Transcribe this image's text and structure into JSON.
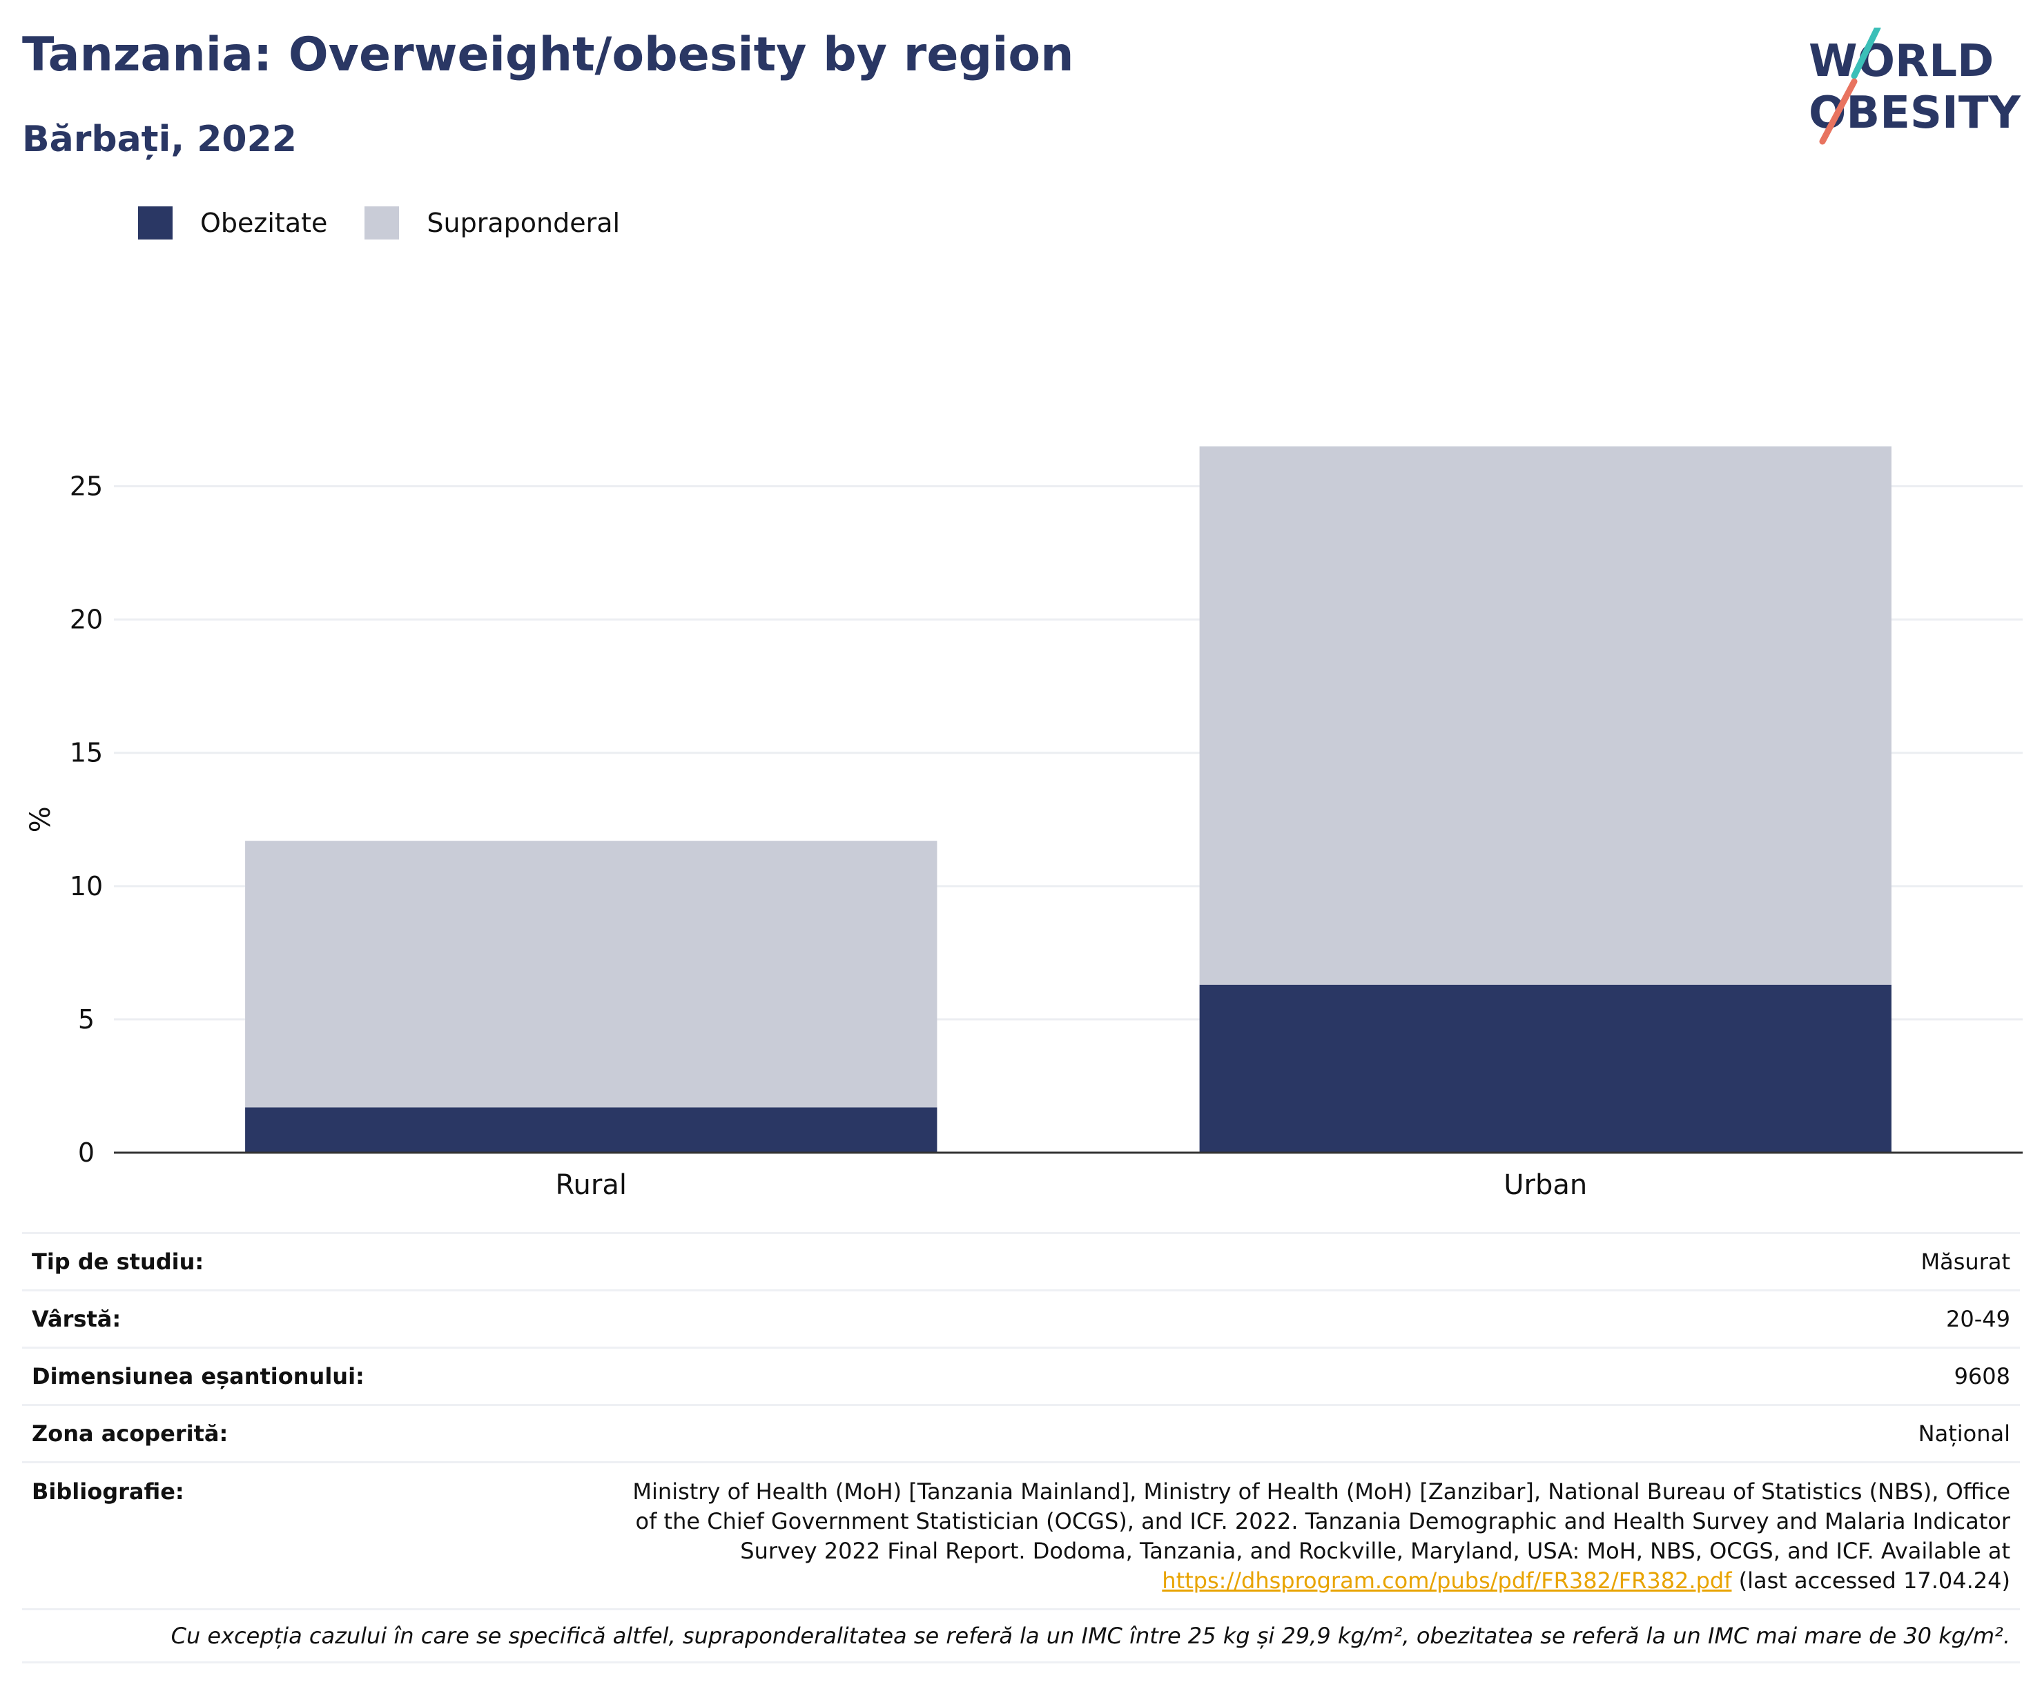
{
  "title": "Tanzania: Overweight/obesity by region",
  "subtitle": "Bărbați, 2022",
  "logo": {
    "line1": "WORLD",
    "line2": "OBESITY",
    "accent_teal": "#3bbfb8",
    "accent_coral": "#e8735f"
  },
  "colors": {
    "obesity": "#2a3764",
    "overweight": "#c9ccd7"
  },
  "chart_data": {
    "type": "bar",
    "stacked": true,
    "categories": [
      "Rural",
      "Urban"
    ],
    "series": [
      {
        "name": "Obezitate",
        "values": [
          1.7,
          6.3
        ],
        "color": "#2a3764"
      },
      {
        "name": "Supraponderal",
        "values": [
          10.0,
          20.2
        ],
        "color": "#c9ccd7"
      }
    ],
    "ylabel": "%",
    "xlabel": "",
    "ylim": [
      0,
      27.5
    ],
    "yticks": [
      0,
      5,
      10,
      15,
      20,
      25
    ],
    "grid": true,
    "legend_position": "top-left"
  },
  "info": {
    "rows": [
      {
        "key": "Tip de studiu:",
        "value": "Măsurat"
      },
      {
        "key": "Vârstă:",
        "value": "20-49"
      },
      {
        "key": "Dimensiunea eșantionului:",
        "value": "9608"
      },
      {
        "key": "Zona acoperită:",
        "value": "Național"
      }
    ],
    "bibliography_key": "Bibliografie:",
    "bibliography_text": "Ministry of Health (MoH) [Tanzania Mainland], Ministry of Health (MoH) [Zanzibar], National Bureau of Statistics (NBS), Office of the Chief Government Statistician (OCGS), and ICF. 2022. Tanzania Demographic and Health Survey and Malaria Indicator Survey 2022 Final Report. Dodoma, Tanzania, and Rockville, Maryland, USA: MoH, NBS, OCGS, and ICF. Available at",
    "bibliography_link": "https://dhsprogram.com/pubs/pdf/FR382/FR382.pdf",
    "bibliography_suffix": "(last accessed 17.04.24)",
    "note": "Cu excepția cazului în care se specifică altfel, supraponderalitatea se referă la un IMC între 25 kg și 29,9 kg/m², obezitatea se referă la un IMC mai mare de 30 kg/m²."
  }
}
